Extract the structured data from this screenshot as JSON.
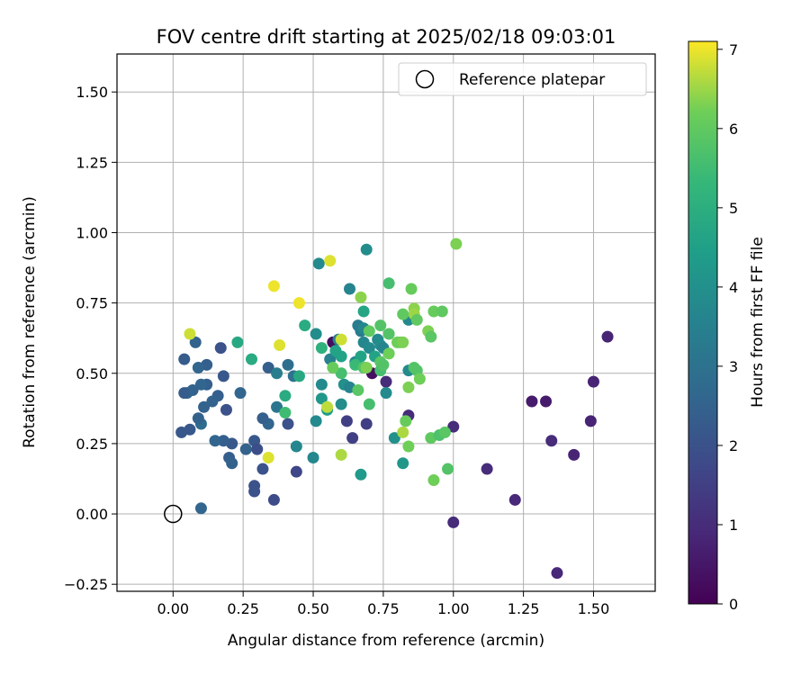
{
  "chart_data": {
    "type": "scatter",
    "title": "FOV centre drift starting at 2025/02/18 09:03:01",
    "xlabel": "Angular distance from reference (arcmin)",
    "ylabel": "Rotation from reference (arcmin)",
    "xlim": [
      -0.2,
      1.72
    ],
    "ylim": [
      -0.275,
      1.635
    ],
    "xticks": [
      0.0,
      0.25,
      0.5,
      0.75,
      1.0,
      1.25,
      1.5
    ],
    "xtick_labels": [
      "0.00",
      "0.25",
      "0.50",
      "0.75",
      "1.00",
      "1.25",
      "1.50"
    ],
    "yticks": [
      -0.25,
      0.0,
      0.25,
      0.5,
      0.75,
      1.0,
      1.25,
      1.5
    ],
    "ytick_labels": [
      "−0.25",
      "0.00",
      "0.25",
      "0.50",
      "0.75",
      "1.00",
      "1.25",
      "1.50"
    ],
    "grid": true,
    "legend": {
      "placement": "top-right",
      "entries": [
        "Reference platepar"
      ]
    },
    "reference_point": {
      "x": 0.0,
      "y": 0.0
    },
    "colorbar": {
      "label": "Hours from first FF file",
      "range": [
        0,
        7.1
      ],
      "ticks": [
        0,
        1,
        2,
        3,
        4,
        5,
        6,
        7
      ],
      "colormap": "viridis"
    },
    "points": [
      [
        1.55,
        0.63,
        0.8
      ],
      [
        1.5,
        0.47,
        0.8
      ],
      [
        1.49,
        0.33,
        0.8
      ],
      [
        1.43,
        0.21,
        0.8
      ],
      [
        1.37,
        -0.21,
        0.9
      ],
      [
        1.35,
        0.26,
        1.0
      ],
      [
        1.33,
        0.4,
        0.6
      ],
      [
        1.28,
        0.4,
        0.6
      ],
      [
        1.22,
        0.05,
        0.9
      ],
      [
        1.12,
        0.16,
        1.0
      ],
      [
        1.0,
        -0.03,
        1.0
      ],
      [
        1.0,
        0.31,
        1.0
      ],
      [
        0.84,
        0.35,
        1.0
      ],
      [
        0.76,
        0.47,
        1.0
      ],
      [
        0.71,
        0.5,
        0.3
      ],
      [
        0.57,
        0.61,
        0.3
      ],
      [
        0.62,
        0.33,
        1.5
      ],
      [
        0.64,
        0.27,
        1.5
      ],
      [
        0.69,
        0.32,
        1.5
      ],
      [
        0.44,
        0.15,
        1.7
      ],
      [
        0.41,
        0.32,
        2.0
      ],
      [
        0.36,
        0.05,
        1.8
      ],
      [
        0.32,
        0.16,
        2.0
      ],
      [
        0.29,
        0.1,
        2.0
      ],
      [
        0.29,
        0.08,
        2.0
      ],
      [
        0.29,
        0.26,
        2.2
      ],
      [
        0.3,
        0.23,
        1.9
      ],
      [
        0.26,
        0.23,
        2.5
      ],
      [
        0.24,
        0.43,
        2.6
      ],
      [
        0.21,
        0.25,
        2.2
      ],
      [
        0.2,
        0.2,
        2.4
      ],
      [
        0.21,
        0.18,
        2.5
      ],
      [
        0.19,
        0.37,
        2.0
      ],
      [
        0.18,
        0.26,
        2.4
      ],
      [
        0.18,
        0.49,
        2.2
      ],
      [
        0.17,
        0.59,
        2.0
      ],
      [
        0.16,
        0.42,
        2.4
      ],
      [
        0.15,
        0.26,
        2.6
      ],
      [
        0.14,
        0.4,
        2.5
      ],
      [
        0.12,
        0.46,
        2.4
      ],
      [
        0.12,
        0.53,
        2.4
      ],
      [
        0.11,
        0.38,
        2.5
      ],
      [
        0.1,
        0.32,
        2.8
      ],
      [
        0.1,
        0.46,
        2.6
      ],
      [
        0.09,
        0.34,
        2.5
      ],
      [
        0.09,
        0.52,
        2.6
      ],
      [
        0.08,
        0.61,
        2.5
      ],
      [
        0.07,
        0.44,
        2.5
      ],
      [
        0.06,
        0.3,
        2.2
      ],
      [
        0.05,
        0.43,
        2.6
      ],
      [
        0.04,
        0.43,
        2.3
      ],
      [
        0.04,
        0.55,
        2.3
      ],
      [
        0.03,
        0.29,
        2.2
      ],
      [
        0.1,
        0.02,
        2.6
      ],
      [
        0.34,
        0.52,
        2.4
      ],
      [
        0.34,
        0.32,
        2.6
      ],
      [
        0.32,
        0.34,
        2.4
      ],
      [
        0.37,
        0.38,
        3.1
      ],
      [
        0.37,
        0.5,
        3.4
      ],
      [
        0.41,
        0.53,
        2.9
      ],
      [
        0.43,
        0.49,
        3.0
      ],
      [
        0.44,
        0.24,
        3.7
      ],
      [
        0.5,
        0.2,
        3.7
      ],
      [
        0.51,
        0.33,
        3.8
      ],
      [
        0.51,
        0.64,
        3.9
      ],
      [
        0.52,
        0.89,
        3.8
      ],
      [
        0.53,
        0.46,
        3.8
      ],
      [
        0.53,
        0.41,
        4.2
      ],
      [
        0.55,
        0.37,
        4.4
      ],
      [
        0.56,
        0.55,
        3.5
      ],
      [
        0.59,
        0.62,
        3.6
      ],
      [
        0.6,
        0.39,
        3.9
      ],
      [
        0.61,
        0.46,
        4.0
      ],
      [
        0.63,
        0.45,
        3.6
      ],
      [
        0.63,
        0.8,
        3.6
      ],
      [
        0.65,
        0.54,
        3.7
      ],
      [
        0.66,
        0.67,
        3.3
      ],
      [
        0.67,
        0.65,
        3.3
      ],
      [
        0.68,
        0.61,
        3.7
      ],
      [
        0.68,
        0.66,
        3.7
      ],
      [
        0.69,
        0.94,
        3.9
      ],
      [
        0.7,
        0.59,
        3.8
      ],
      [
        0.73,
        0.62,
        3.8
      ],
      [
        0.74,
        0.6,
        3.9
      ],
      [
        0.75,
        0.59,
        3.6
      ],
      [
        0.76,
        0.43,
        3.8
      ],
      [
        0.79,
        0.27,
        4.0
      ],
      [
        0.82,
        0.18,
        4.2
      ],
      [
        0.84,
        0.51,
        3.8
      ],
      [
        0.84,
        0.69,
        3.8
      ],
      [
        0.67,
        0.14,
        4.3
      ],
      [
        0.67,
        0.56,
        4.6
      ],
      [
        0.68,
        0.72,
        4.7
      ],
      [
        0.72,
        0.56,
        4.6
      ],
      [
        0.6,
        0.56,
        4.6
      ],
      [
        0.58,
        0.58,
        4.6
      ],
      [
        0.4,
        0.42,
        4.9
      ],
      [
        0.47,
        0.67,
        4.9
      ],
      [
        0.45,
        0.49,
        4.8
      ],
      [
        0.28,
        0.55,
        4.9
      ],
      [
        0.23,
        0.61,
        4.8
      ],
      [
        0.4,
        0.36,
        5.5
      ],
      [
        0.53,
        0.59,
        5.1
      ],
      [
        0.6,
        0.5,
        5.6
      ],
      [
        0.65,
        0.53,
        5.4
      ],
      [
        0.68,
        0.52,
        5.8
      ],
      [
        0.7,
        0.39,
        5.6
      ],
      [
        0.66,
        0.44,
        5.9
      ],
      [
        0.74,
        0.54,
        5.9
      ],
      [
        0.74,
        0.51,
        5.6
      ],
      [
        0.74,
        0.67,
        5.8
      ],
      [
        0.75,
        0.53,
        5.8
      ],
      [
        0.7,
        0.65,
        6.0
      ],
      [
        0.77,
        0.64,
        5.8
      ],
      [
        0.77,
        0.82,
        5.6
      ],
      [
        0.81,
        0.61,
        6.2
      ],
      [
        0.8,
        0.61,
        6.2
      ],
      [
        0.82,
        0.61,
        6.3
      ],
      [
        0.83,
        0.33,
        6.1
      ],
      [
        0.84,
        0.24,
        6.2
      ],
      [
        0.84,
        0.45,
        6.3
      ],
      [
        0.85,
        0.8,
        6.1
      ],
      [
        0.86,
        0.73,
        6.4
      ],
      [
        0.86,
        0.71,
        6.5
      ],
      [
        0.87,
        0.51,
        5.8
      ],
      [
        0.87,
        0.69,
        6.0
      ],
      [
        0.88,
        0.48,
        6.2
      ],
      [
        0.91,
        0.65,
        6.3
      ],
      [
        0.92,
        0.27,
        6.0
      ],
      [
        0.92,
        0.63,
        5.9
      ],
      [
        0.93,
        0.12,
        6.2
      ],
      [
        0.93,
        0.72,
        6.1
      ],
      [
        0.95,
        0.28,
        5.7
      ],
      [
        0.96,
        0.72,
        6.0
      ],
      [
        0.97,
        0.29,
        5.9
      ],
      [
        0.98,
        0.16,
        5.8
      ],
      [
        1.01,
        0.96,
        6.3
      ],
      [
        0.86,
        0.52,
        5.8
      ],
      [
        0.82,
        0.71,
        6.0
      ],
      [
        0.82,
        0.29,
        6.6
      ],
      [
        0.6,
        0.21,
        6.6
      ],
      [
        0.57,
        0.52,
        6.1
      ],
      [
        0.55,
        0.38,
        6.7
      ],
      [
        0.67,
        0.77,
        6.4
      ],
      [
        0.77,
        0.57,
        6.2
      ],
      [
        0.69,
        0.52,
        6.3
      ],
      [
        0.56,
        0.9,
        6.9
      ],
      [
        0.45,
        0.75,
        7.0
      ],
      [
        0.36,
        0.81,
        7.0
      ],
      [
        0.38,
        0.6,
        6.9
      ],
      [
        0.34,
        0.2,
        6.9
      ],
      [
        0.06,
        0.64,
        6.8
      ],
      [
        0.6,
        0.62,
        6.8
      ]
    ]
  }
}
